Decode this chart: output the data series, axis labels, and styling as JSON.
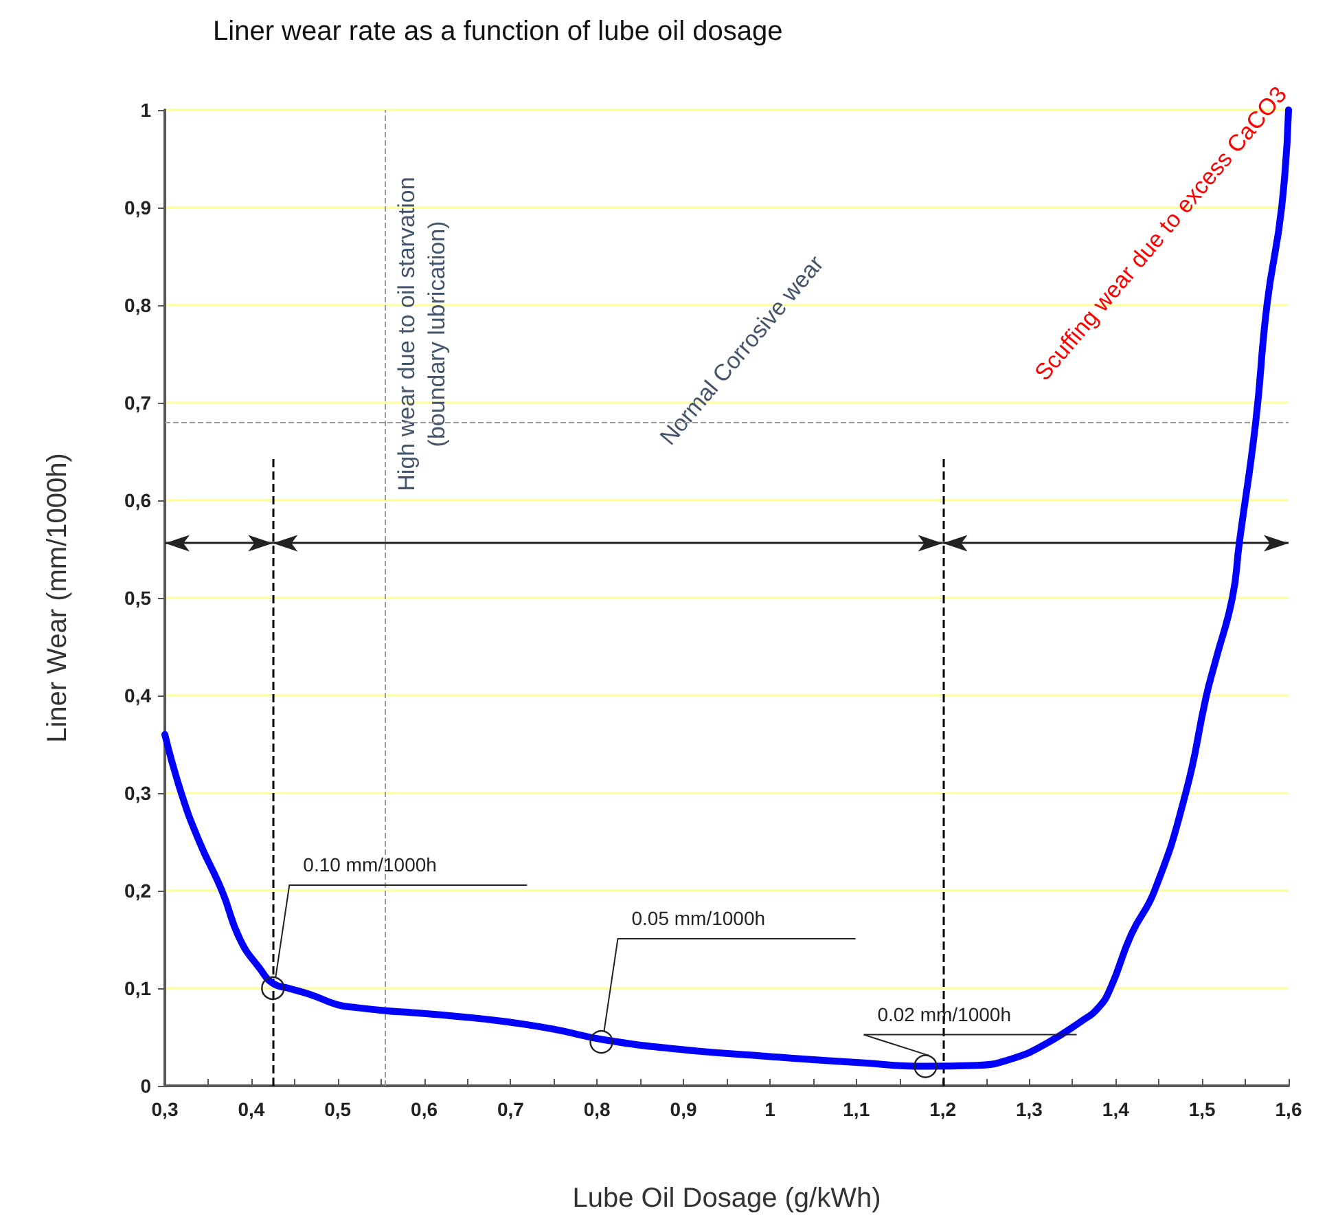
{
  "chart_data": {
    "type": "line",
    "title": "Liner wear rate as a function of lube oil dosage",
    "xlabel": "Lube Oil Dosage (g/kWh)",
    "ylabel": "Liner Wear (mm/1000h)",
    "series": [
      {
        "color": "#0000ff",
        "x": [
          0.3,
          0.319,
          0.34,
          0.366,
          0.387,
          0.41,
          0.425,
          0.443,
          0.47,
          0.5,
          0.523,
          0.555,
          0.586,
          0.64,
          0.692,
          0.75,
          0.809,
          0.9,
          1.0,
          1.03,
          1.1,
          1.18,
          1.24,
          1.281,
          1.317,
          1.36,
          1.38,
          1.394,
          1.418,
          1.445,
          1.481,
          1.505,
          1.516,
          1.535,
          1.543,
          1.562,
          1.575,
          1.592,
          1.6
        ],
        "values": [
          0.36,
          0.3,
          0.25,
          0.2,
          0.15,
          0.12,
          0.105,
          0.1,
          0.093,
          0.083,
          0.08,
          0.077,
          0.075,
          0.071,
          0.066,
          0.058,
          0.047,
          0.037,
          0.03,
          0.028,
          0.024,
          0.02,
          0.021,
          0.028,
          0.042,
          0.066,
          0.08,
          0.1,
          0.155,
          0.2,
          0.3,
          0.4,
          0.437,
          0.5,
          0.556,
          0.68,
          0.8,
          0.9,
          1.0
        ]
      }
    ],
    "xlim": [
      0.3,
      1.6
    ],
    "ylim": [
      0,
      1
    ],
    "xticks": [
      {
        "value": 0.3,
        "label": "0,3"
      },
      {
        "value": 0.35,
        "label": null
      },
      {
        "value": 0.4,
        "label": "0,4"
      },
      {
        "value": 0.45,
        "label": null
      },
      {
        "value": 0.5,
        "label": "0,5"
      },
      {
        "value": 0.55,
        "label": null
      },
      {
        "value": 0.6,
        "label": "0,6"
      },
      {
        "value": 0.65,
        "label": null
      },
      {
        "value": 0.7,
        "label": "0,7"
      },
      {
        "value": 0.75,
        "label": null
      },
      {
        "value": 0.8,
        "label": "0,8"
      },
      {
        "value": 0.85,
        "label": null
      },
      {
        "value": 0.9,
        "label": "0,9"
      },
      {
        "value": 0.95,
        "label": null
      },
      {
        "value": 1,
        "label": "1"
      },
      {
        "value": 1.05,
        "label": null
      },
      {
        "value": 1.1,
        "label": "1,1"
      },
      {
        "value": 1.15,
        "label": null
      },
      {
        "value": 1.2,
        "label": "1,2"
      },
      {
        "value": 1.25,
        "label": null
      },
      {
        "value": 1.3,
        "label": "1,3"
      },
      {
        "value": 1.35,
        "label": null
      },
      {
        "value": 1.4,
        "label": "1,4"
      },
      {
        "value": 1.45,
        "label": null
      },
      {
        "value": 1.5,
        "label": "1,5"
      },
      {
        "value": 1.55,
        "label": null
      },
      {
        "value": 1.6,
        "label": "1,6"
      }
    ],
    "yticks": [
      0,
      {
        "value": 0.1,
        "label": "0,1"
      },
      {
        "value": 0.2,
        "label": "0,2"
      },
      {
        "value": 0.3,
        "label": "0,3"
      },
      {
        "value": 0.4,
        "label": "0,4"
      },
      {
        "value": 0.5,
        "label": "0,5"
      },
      {
        "value": 0.6,
        "label": "0,6"
      },
      {
        "value": 0.7,
        "label": "0,7"
      },
      {
        "value": 0.8,
        "label": "0,8"
      },
      {
        "value": 0.9,
        "label": "0,9"
      },
      1
    ],
    "grid": "y",
    "marker": "none",
    "line_style": "solid",
    "ref_lines": [
      {
        "axis": "x",
        "value": 0.425,
        "color": "#000000",
        "line_style": "dashed"
      },
      {
        "axis": "x",
        "value": 1.2,
        "color": "#000000",
        "line_style": "dashed"
      },
      {
        "axis": "x",
        "value": 0.555,
        "color": "#999999",
        "line_style": "dashed"
      },
      {
        "axis": "y",
        "value": 0.68,
        "color": "#999999",
        "line_style": "dashed"
      }
    ],
    "annotations": [
      "High wear due to oil starvation\n(boundary lubrication)",
      "Normal Corrosive wear",
      "Scuffing wear due to excess CaCO3",
      {
        "text": "0.10 mm/1000h",
        "x": 0.425,
        "y": 0.1
      },
      {
        "text": "0.05 mm/1000h",
        "x": 0.805,
        "y": 0.045
      },
      {
        "text": "0.02 mm/1000h",
        "x": 1.18,
        "y": 0.02
      }
    ]
  }
}
